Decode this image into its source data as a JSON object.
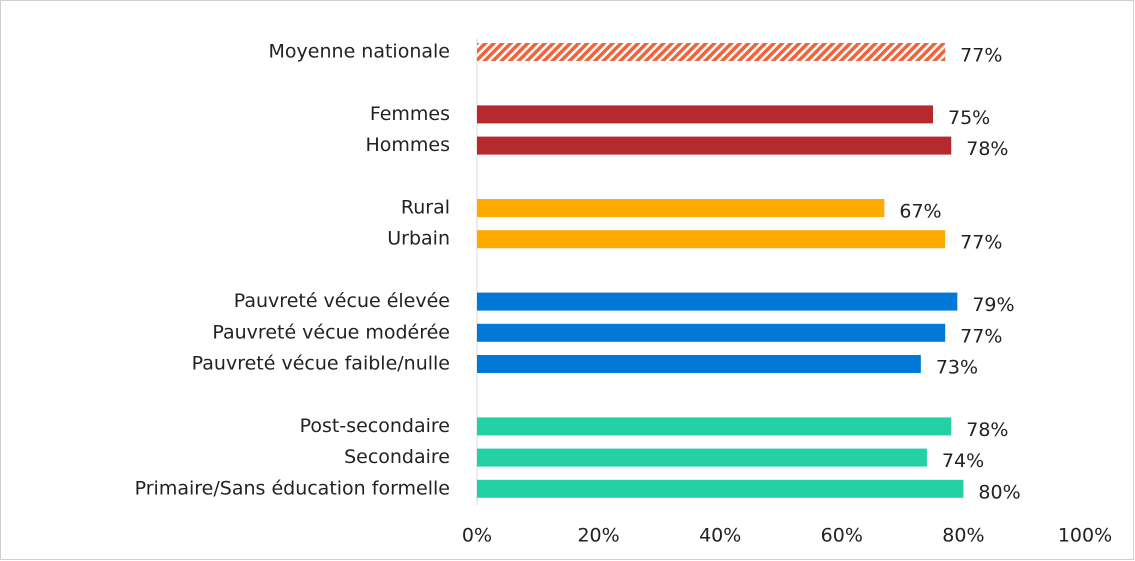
{
  "chart_data": {
    "type": "bar",
    "orientation": "horizontal",
    "categories": [
      "Moyenne nationale",
      null,
      "Femmes",
      "Hommes",
      null,
      "Rural",
      "Urbain",
      null,
      "Pauvreté vécue élevée",
      "Pauvreté vécue modérée",
      "Pauvreté vécue faible/nulle",
      null,
      "Post-secondaire",
      "Secondaire",
      "Primaire/Sans éducation formelle"
    ],
    "values": [
      77,
      null,
      75,
      78,
      null,
      67,
      77,
      null,
      79,
      77,
      73,
      null,
      78,
      74,
      80
    ],
    "value_labels": [
      "77%",
      null,
      "75%",
      "78%",
      null,
      "67%",
      "77%",
      null,
      "79%",
      "77%",
      "73%",
      null,
      "78%",
      "74%",
      "80%"
    ],
    "colors": [
      "#f0643c",
      null,
      "#b5292f",
      "#b5292f",
      null,
      "#ffaa00",
      "#ffaa00",
      null,
      "#0078d7",
      "#0078d7",
      "#0078d7",
      null,
      "#23d1a5",
      "#23d1a5",
      "#23d1a5"
    ],
    "hatched": [
      "Moyenne nationale"
    ],
    "xlim": [
      0,
      100
    ],
    "xticks": [
      {
        "value": 0,
        "label": "0%"
      },
      {
        "value": 20,
        "label": "20%"
      },
      {
        "value": 40,
        "label": "40%"
      },
      {
        "value": 60,
        "label": "60%"
      },
      {
        "value": 80,
        "label": "80%"
      },
      {
        "value": 100,
        "label": "100%"
      }
    ]
  }
}
